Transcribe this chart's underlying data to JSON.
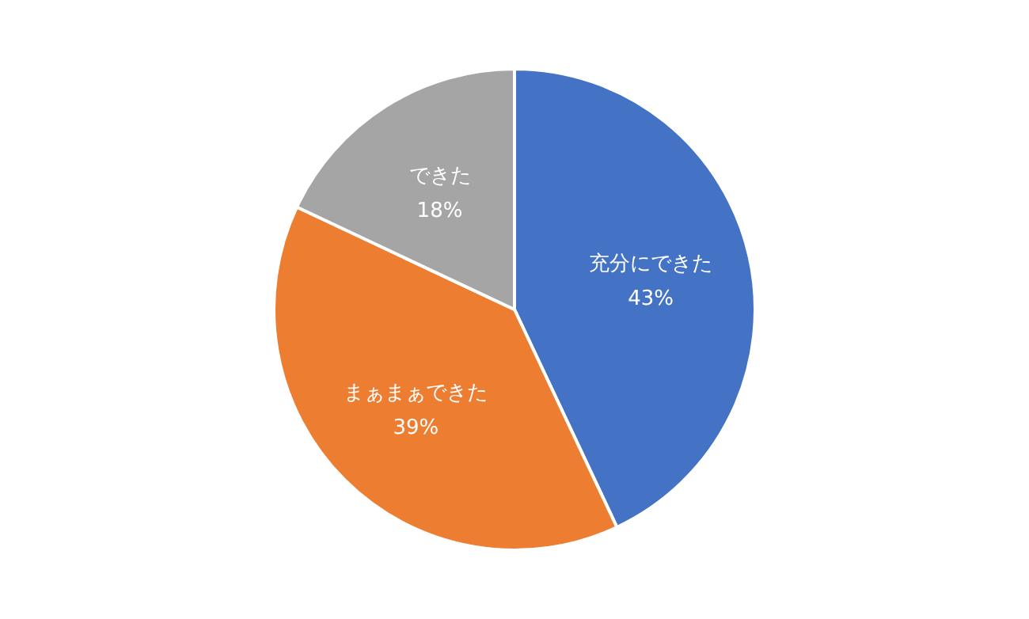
{
  "chart_data": {
    "type": "pie",
    "categories": [
      "充分にできた",
      "まぁまぁできた",
      "できた"
    ],
    "values": [
      43,
      39,
      18
    ],
    "colors": [
      "#4472c4",
      "#ed7d31",
      "#a5a5a5"
    ],
    "value_labels": [
      "43%",
      "39%",
      "18%"
    ]
  }
}
